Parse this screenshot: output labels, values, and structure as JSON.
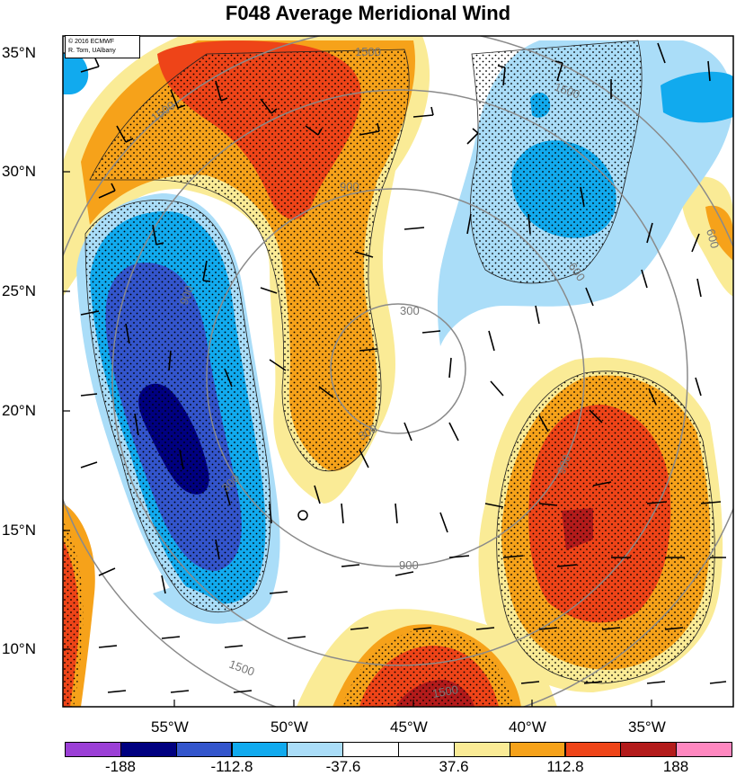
{
  "title": "F048 Average Meridional Wind",
  "credit": {
    "line1": "© 2016 ECMWF",
    "line2": "R. Torn, UAlbany"
  },
  "lat_labels": [
    "35°N",
    "30°N",
    "25°N",
    "20°N",
    "15°N",
    "10°N"
  ],
  "lon_labels": [
    "55°W",
    "50°W",
    "45°W",
    "40°W",
    "35°W"
  ],
  "contour_labels": [
    "1500",
    "1500",
    "1500",
    "900",
    "900",
    "900",
    "900",
    "300",
    "300",
    "300",
    "600",
    "600",
    "1500",
    "1500"
  ],
  "colorbar": {
    "labels": [
      "-188",
      "-112.8",
      "-37.6",
      "37.6",
      "112.8",
      "188"
    ],
    "colors": [
      "#9b3fd6",
      "#000080",
      "#3355cc",
      "#11aaee",
      "#aaddf8",
      "#ffffff",
      "#ffffff",
      "#faeb96",
      "#f6a21a",
      "#ee4418",
      "#b31b1b",
      "#ff88c0"
    ]
  },
  "map_colors": {
    "strong_pos": "#ee4418",
    "pos": "#f6a21a",
    "weak_pos": "#faeb96",
    "weak_neg": "#aaddf8",
    "neg": "#11aaee",
    "strong_neg": "#3355cc",
    "very_neg": "#000080",
    "extreme_pos": "#b31b1b"
  }
}
